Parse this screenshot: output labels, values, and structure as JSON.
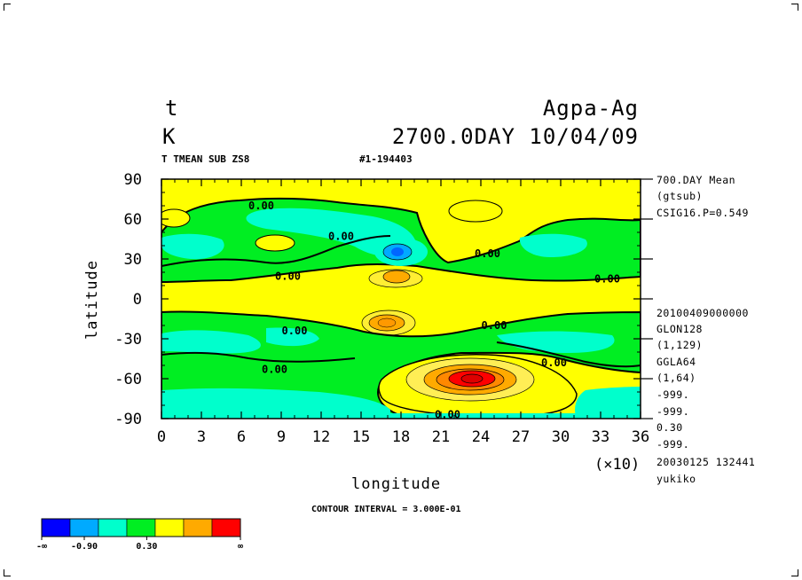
{
  "header": {
    "variable": "t",
    "units": "K",
    "run_name": "Agpa-Ag",
    "time_stamp": "2700.0DAY 10/04/09",
    "title_line": "T TMEAN SUB ZS8",
    "run_id": "#1-194403"
  },
  "side_info_top": [
    "700.DAY Mean",
    "(gtsub)",
    "CSIG16.P=0.549"
  ],
  "side_info_bottom": [
    "20100409000000",
    "GLON128",
    "(1,129)",
    "GGLA64",
    "(1,64)",
    "-999.",
    "-999.",
    "0.30",
    "-999.",
    "20030125 132441",
    "yukiko"
  ],
  "contour_interval_text": "CONTOUR INTERVAL = 3.000E-01",
  "colorbar": {
    "colors": [
      "#0000ff",
      "#00aaff",
      "#00ffcc",
      "#00ee22",
      "#ffff00",
      "#ffaa00",
      "#ff0000"
    ],
    "labels": [
      "-∞",
      "-0.90",
      "0.30",
      "∞"
    ]
  },
  "chart_data": {
    "type": "heatmap",
    "xlabel": "longitude",
    "ylabel": "latitude",
    "x_multiplier_label": "(×10)",
    "xlim": [
      0,
      36
    ],
    "ylim": [
      -90,
      90
    ],
    "x_ticks": [
      "0",
      "3",
      "6",
      "9",
      "12",
      "15",
      "18",
      "21",
      "24",
      "27",
      "30",
      "33",
      "36"
    ],
    "y_ticks": [
      "90",
      "60",
      "30",
      "0",
      "-30",
      "-60",
      "-90"
    ],
    "contour_labels": [
      {
        "text": "0.00",
        "lon": 7.5,
        "lat": 70
      },
      {
        "text": "0.00",
        "lon": 13.5,
        "lat": 47
      },
      {
        "text": "0.00",
        "lon": 9.5,
        "lat": 17
      },
      {
        "text": "0.00",
        "lon": 24.5,
        "lat": 34
      },
      {
        "text": "0.00",
        "lon": 33.5,
        "lat": 15
      },
      {
        "text": "0.00",
        "lon": 10,
        "lat": -24
      },
      {
        "text": "0.00",
        "lon": 25,
        "lat": -20
      },
      {
        "text": "0.00",
        "lon": 29.5,
        "lat": -48
      },
      {
        "text": "0.00",
        "lon": 8.5,
        "lat": -53
      },
      {
        "text": "0.00",
        "lon": 21.5,
        "lat": -87
      }
    ],
    "features": [
      {
        "name": "northern high-latitude band",
        "lat_range": [
          63,
          84
        ],
        "approx_value": 0.15
      },
      {
        "name": "northern mid-latitude negative band",
        "lat_range": [
          22,
          60
        ],
        "approx_value": -0.3
      },
      {
        "name": "minimum near 18E-lon 36N",
        "lon": 18,
        "lat": 36,
        "approx_value": -1.2
      },
      {
        "name": "equatorial positive band",
        "lat_range": [
          -20,
          20
        ],
        "approx_value": 0.1
      },
      {
        "name": "local maximum",
        "lon": 18,
        "lat": 17,
        "approx_value": 0.6
      },
      {
        "name": "local maximum",
        "lon": 17,
        "lat": -18,
        "approx_value": 0.7
      },
      {
        "name": "southern mid-latitude negative band",
        "lat_range": [
          -55,
          -25
        ],
        "approx_value": -0.3
      },
      {
        "name": "southern maximum",
        "lon": 23.5,
        "lat": -60,
        "approx_value": 1.4
      },
      {
        "name": "polar negative band",
        "lat_range": [
          -90,
          -72
        ],
        "approx_value": -0.4
      }
    ]
  }
}
